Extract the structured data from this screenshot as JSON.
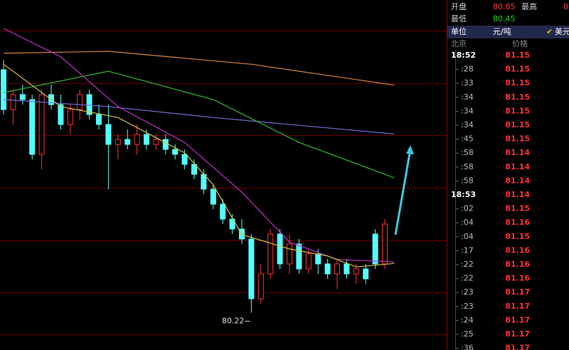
{
  "chart_data": {
    "type": "candlestick",
    "ylim": [
      79.5,
      86.5
    ],
    "up_color": "#ff3232",
    "down_color": "#54ffff",
    "open": [
      85.1,
      84.3,
      84.6,
      84.5,
      83.4,
      84.6,
      84.4,
      84.0,
      84.3,
      84.6,
      84.2,
      84.0,
      83.6,
      83.7,
      83.6,
      83.8,
      83.6,
      83.7,
      83.5,
      83.4,
      83.2,
      83.0,
      82.7,
      82.4,
      82.1,
      81.9,
      81.7,
      80.5,
      81.0,
      81.8,
      81.2,
      81.6,
      81.1,
      81.4,
      81.2,
      81.0,
      81.2,
      81.0,
      81.1,
      81.8,
      81.2
    ],
    "high": [
      85.3,
      84.7,
      84.8,
      84.6,
      84.7,
      84.8,
      84.6,
      84.4,
      84.7,
      84.7,
      84.4,
      84.4,
      83.8,
      83.9,
      84.0,
      83.9,
      83.8,
      83.8,
      83.6,
      83.5,
      83.3,
      83.1,
      82.8,
      82.5,
      82.2,
      82.1,
      81.8,
      81.2,
      81.9,
      81.9,
      81.8,
      81.7,
      81.5,
      81.5,
      81.3,
      81.3,
      81.3,
      81.2,
      81.2,
      81.9,
      82.1
    ],
    "low": [
      84.2,
      84.0,
      84.4,
      83.3,
      83.1,
      84.3,
      83.9,
      83.8,
      84.1,
      84.1,
      83.9,
      82.7,
      83.3,
      83.5,
      83.4,
      83.5,
      83.5,
      83.4,
      83.3,
      83.1,
      82.9,
      82.6,
      82.3,
      82.0,
      81.8,
      81.6,
      80.22,
      80.4,
      80.9,
      81.1,
      81.0,
      81.0,
      81.0,
      81.0,
      80.9,
      80.7,
      80.9,
      80.8,
      80.8,
      81.1,
      81.1
    ],
    "close": [
      84.3,
      84.6,
      84.5,
      83.4,
      84.6,
      84.4,
      84.0,
      84.3,
      84.6,
      84.2,
      84.0,
      83.6,
      83.7,
      83.6,
      83.8,
      83.6,
      83.7,
      83.5,
      83.4,
      83.2,
      83.0,
      82.7,
      82.4,
      82.1,
      81.9,
      81.7,
      80.5,
      81.0,
      81.8,
      81.2,
      81.6,
      81.1,
      81.4,
      81.2,
      81.0,
      81.2,
      81.0,
      81.1,
      80.9,
      81.2,
      82.0
    ],
    "min_label": 80.22,
    "lines": [
      {
        "color": "#d9823a",
        "x": [
          0,
          11,
          26,
          41
        ],
        "values": [
          85.43,
          85.47,
          85.21,
          84.79
        ]
      },
      {
        "color": "#6f6fd8",
        "x": [
          0,
          11,
          22,
          41
        ],
        "values": [
          84.5,
          84.36,
          84.14,
          83.81
        ]
      },
      {
        "color": "#2fb82f",
        "x": [
          0,
          11,
          22,
          31,
          41
        ],
        "values": [
          84.64,
          85.07,
          84.5,
          83.64,
          82.93
        ]
      },
      {
        "color": "#c030c0",
        "x": [
          0,
          6,
          12,
          19,
          25,
          30,
          35,
          41
        ],
        "values": [
          85.93,
          85.36,
          84.36,
          83.64,
          82.64,
          81.64,
          81.29,
          81.24
        ]
      },
      {
        "color": "#d8c040",
        "x": [
          0,
          6,
          12,
          19,
          22,
          25,
          30,
          34,
          37,
          41
        ],
        "values": [
          85.21,
          84.36,
          84.14,
          83.43,
          82.79,
          81.79,
          81.5,
          81.36,
          81.14,
          81.21
        ]
      }
    ]
  },
  "quote": {
    "open_label": "开盘",
    "open": 80.85,
    "high_label": "最高",
    "high": "8",
    "low_label": "最低",
    "low": 80.45
  },
  "unit_bar": {
    "label": "单位",
    "unit": "元/吨",
    "currency": "美元"
  },
  "ticks": {
    "header": [
      "北京",
      "价格"
    ],
    "rows": [
      [
        "18:52",
        81.15
      ],
      [
        ":28",
        81.15
      ],
      [
        ":33",
        81.15
      ],
      [
        ":34",
        81.15
      ],
      [
        ":34",
        81.15
      ],
      [
        ":34",
        81.15
      ],
      [
        ":45",
        81.15
      ],
      [
        ":58",
        81.14
      ],
      [
        ":58",
        81.14
      ],
      [
        ":58",
        81.14
      ],
      [
        "18:53",
        81.14
      ],
      [
        ":02",
        81.15
      ],
      [
        ":04",
        81.16
      ],
      [
        ":04",
        81.15
      ],
      [
        ":17",
        81.16
      ],
      [
        ":22",
        81.16
      ],
      [
        ":22",
        81.16
      ],
      [
        ":23",
        81.17
      ],
      [
        ":23",
        81.17
      ],
      [
        ":24",
        81.17
      ],
      [
        ":25",
        81.17
      ],
      [
        ":36",
        81.17
      ]
    ]
  }
}
